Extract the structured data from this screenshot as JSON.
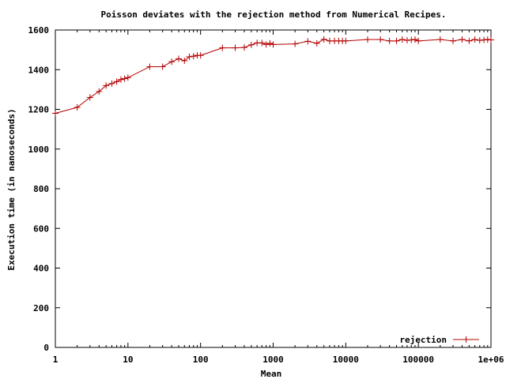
{
  "chart_data": {
    "type": "line",
    "title": "Poisson deviates with the rejection method from Numerical Recipes.",
    "xlabel": "Mean",
    "ylabel": "Execution time (in nanoseconds)",
    "xscale": "log",
    "xlim": [
      1,
      1000000
    ],
    "ylim": [
      0,
      1600
    ],
    "x_ticks": [
      1,
      10,
      100,
      1000,
      10000,
      100000,
      1000000
    ],
    "x_tick_labels": [
      "1",
      "10",
      "100",
      "1000",
      "10000",
      "100000",
      "1e+06"
    ],
    "y_ticks": [
      0,
      200,
      400,
      600,
      800,
      1000,
      1200,
      1400,
      1600
    ],
    "y_tick_labels": [
      "0",
      "200",
      "400",
      "600",
      "800",
      "1000",
      "1200",
      "1400",
      "1600"
    ],
    "legend_position": "bottom-right",
    "series": [
      {
        "name": "rejection",
        "color": "#b30000",
        "x": [
          1,
          2,
          3,
          4,
          5,
          6,
          7,
          8,
          9,
          10,
          20,
          30,
          40,
          50,
          60,
          70,
          80,
          90,
          100,
          200,
          300,
          400,
          500,
          600,
          700,
          800,
          900,
          1000,
          2000,
          3000,
          4000,
          5000,
          6000,
          7000,
          8000,
          9000,
          10000,
          20000,
          30000,
          40000,
          50000,
          60000,
          70000,
          80000,
          90000,
          100000,
          200000,
          300000,
          400000,
          500000,
          600000,
          700000,
          800000,
          900000,
          1000000
        ],
        "y": [
          1180,
          1210,
          1260,
          1290,
          1320,
          1330,
          1340,
          1350,
          1355,
          1360,
          1415,
          1415,
          1440,
          1455,
          1445,
          1465,
          1468,
          1472,
          1472,
          1510,
          1510,
          1512,
          1525,
          1535,
          1535,
          1527,
          1533,
          1527,
          1530,
          1543,
          1533,
          1553,
          1545,
          1545,
          1545,
          1545,
          1545,
          1552,
          1552,
          1545,
          1545,
          1552,
          1548,
          1550,
          1552,
          1545,
          1552,
          1545,
          1552,
          1545,
          1552,
          1548,
          1550,
          1552,
          1550
        ]
      }
    ]
  }
}
